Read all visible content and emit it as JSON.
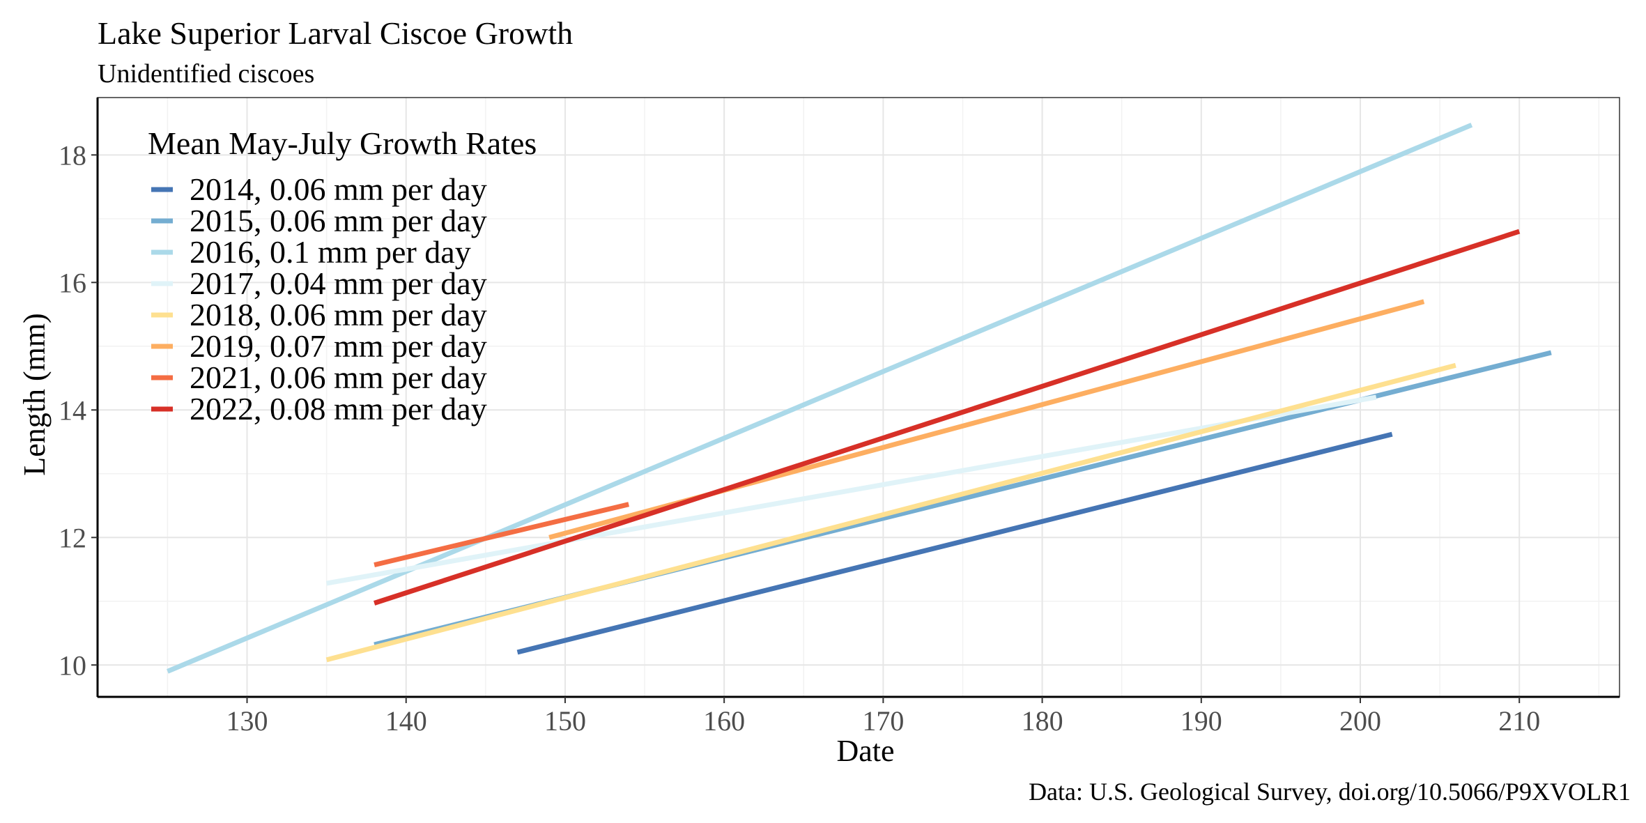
{
  "chart_data": {
    "type": "line",
    "title": "Lake Superior Larval Ciscoe Growth",
    "subtitle": "Unidentified ciscoes",
    "xlabel": "Date",
    "ylabel": "Length (mm)",
    "caption": "Data: U.S. Geological Survey, doi.org/10.5066/P9XVOLR1",
    "xlim": [
      120.6,
      216.3
    ],
    "ylim": [
      9.5,
      18.9
    ],
    "xticks": [
      130,
      140,
      150,
      160,
      170,
      180,
      190,
      200,
      210
    ],
    "yticks": [
      10,
      12,
      14,
      16,
      18
    ],
    "grid": true,
    "legend": {
      "title": "Mean May-July Growth Rates",
      "position": "top-left"
    },
    "series": [
      {
        "name": "2014, 0.06 mm per day",
        "color": "#4575b4",
        "x": [
          147,
          202
        ],
        "y": [
          10.2,
          13.62
        ]
      },
      {
        "name": "2015, 0.06 mm per day",
        "color": "#74add1",
        "x": [
          138,
          212
        ],
        "y": [
          10.32,
          14.9
        ]
      },
      {
        "name": "2016, 0.1 mm per day",
        "color": "#abd9e9",
        "x": [
          125,
          207
        ],
        "y": [
          9.9,
          18.47
        ]
      },
      {
        "name": "2017, 0.04 mm per day",
        "color": "#e0f3f8",
        "x": [
          135,
          201
        ],
        "y": [
          11.28,
          14.2
        ]
      },
      {
        "name": "2018, 0.06 mm per day",
        "color": "#fee090",
        "x": [
          135,
          206
        ],
        "y": [
          10.08,
          14.7
        ]
      },
      {
        "name": "2019, 0.07 mm per day",
        "color": "#fdae61",
        "x": [
          149,
          204
        ],
        "y": [
          12.0,
          15.7
        ]
      },
      {
        "name": "2021, 0.06 mm per day",
        "color": "#f46d43",
        "x": [
          138,
          154
        ],
        "y": [
          11.57,
          12.52
        ]
      },
      {
        "name": "2022, 0.08 mm per day",
        "color": "#d73027",
        "x": [
          138,
          210
        ],
        "y": [
          10.97,
          16.8
        ]
      }
    ]
  }
}
